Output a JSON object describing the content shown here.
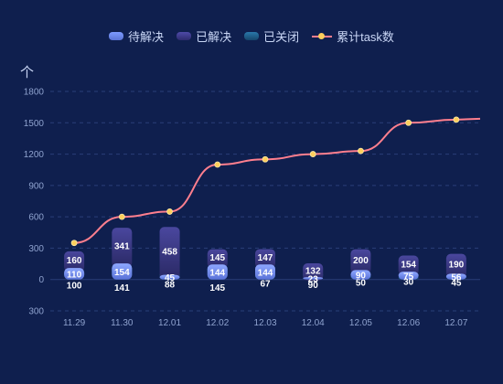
{
  "legend": {
    "pending": "待解决",
    "solved": "已解决",
    "closed": "已关闭",
    "cumulative": "累计task数"
  },
  "unit_label": "个",
  "chart_data": {
    "type": "bar",
    "stacked": true,
    "categories": [
      "11.29",
      "11.30",
      "12.01",
      "12.02",
      "12.03",
      "12.04",
      "12.05",
      "12.06",
      "12.07"
    ],
    "series": [
      {
        "name": "待解决",
        "type": "bar",
        "values": [
          110,
          154,
          45,
          144,
          144,
          23,
          90,
          75,
          56
        ],
        "color": "#6f8cf2"
      },
      {
        "name": "已解决",
        "type": "bar",
        "values": [
          160,
          341,
          458,
          145,
          147,
          132,
          200,
          154,
          190
        ],
        "color": "#3d3a8a"
      },
      {
        "name": "已关闭",
        "type": "bar",
        "values": [
          -100,
          -141,
          -88,
          -145,
          -67,
          -90,
          -50,
          -30,
          -45
        ],
        "color": "#1e5a85"
      },
      {
        "name": "累计task数",
        "type": "line",
        "values": [
          350,
          600,
          650,
          1100,
          1150,
          1200,
          1230,
          1500,
          1530
        ],
        "color": "#ff7f8e",
        "marker_color": "#ffcf5c"
      }
    ],
    "yticks": [
      -300,
      0,
      300,
      600,
      900,
      1200,
      1500,
      1800
    ],
    "ytick_labels": [
      "300",
      "0",
      "300",
      "600",
      "900",
      "1200",
      "1500",
      "1800"
    ],
    "ylim": [
      -300,
      1800
    ],
    "grid": true,
    "legend_position": "top-center"
  }
}
